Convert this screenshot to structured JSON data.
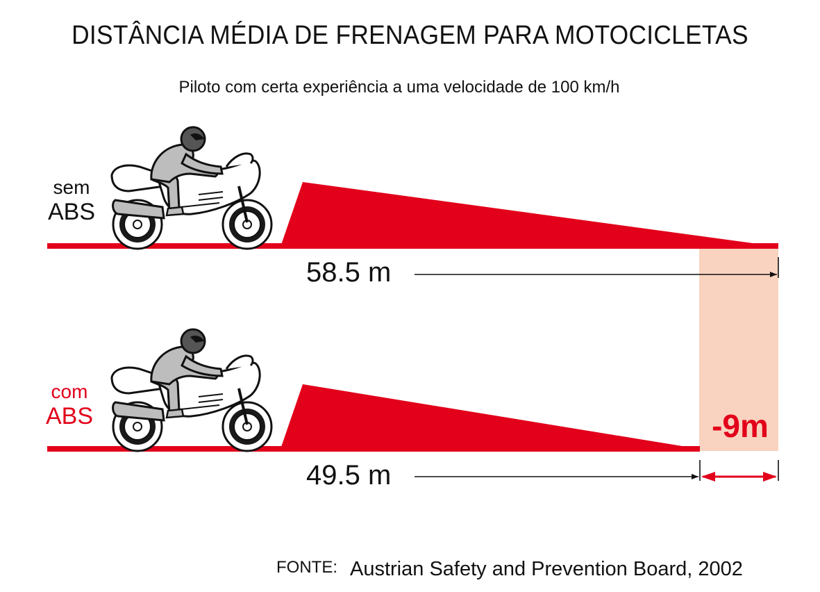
{
  "title": "DISTÂNCIA MÉDIA DE FRENAGEM PARA MOTOCICLETAS",
  "subtitle": "Piloto com certa experiência a uma velocidade de 100 km/h",
  "rows": [
    {
      "label_line1": "sem",
      "label_line2": "ABS",
      "distance_label": "58.5 m",
      "distance_m": 58.5
    },
    {
      "label_line1": "com",
      "label_line2": "ABS",
      "distance_label": "49.5 m",
      "distance_m": 49.5
    }
  ],
  "difference_label": "-9m",
  "source": {
    "key": "FONTE:",
    "value": "Austrian Safety and Prevention Board, 2002"
  },
  "colors": {
    "red": "#e2001a",
    "highlight": "#f9d3bf",
    "rider": "#bdbdbd",
    "text": "#111111"
  },
  "icons": [
    "motorcycle-rider-icon",
    "arrow-right-icon"
  ]
}
